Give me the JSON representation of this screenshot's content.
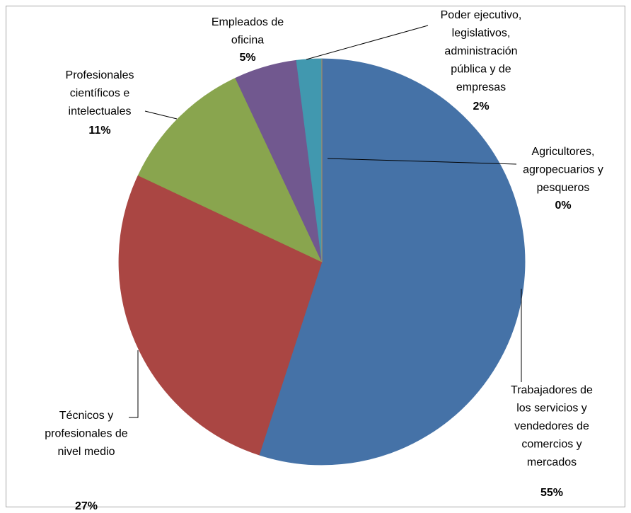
{
  "chart_data": {
    "type": "pie",
    "categories": [
      "Trabajadores de\nlos servicios y\nvendedores de\ncomercios y\nmercados",
      "Técnicos y\nprofesionales de\nnivel medio",
      "Profesionales\ncientíficos e\nintelectuales",
      "Empleados de\noficina",
      "Poder ejecutivo,\nlegislativos,\nadministración\npública y de\nempresas",
      "Agricultores,\nagropecuarios y\npesqueros"
    ],
    "values": [
      55,
      27,
      11,
      5,
      2,
      0
    ],
    "value_labels": [
      "55%",
      "27%",
      "11%",
      "5%",
      "2%",
      "0%"
    ],
    "colors": [
      "#4572a7",
      "#aa4643",
      "#89a54e",
      "#71588f",
      "#4198af",
      "#db843d"
    ]
  }
}
